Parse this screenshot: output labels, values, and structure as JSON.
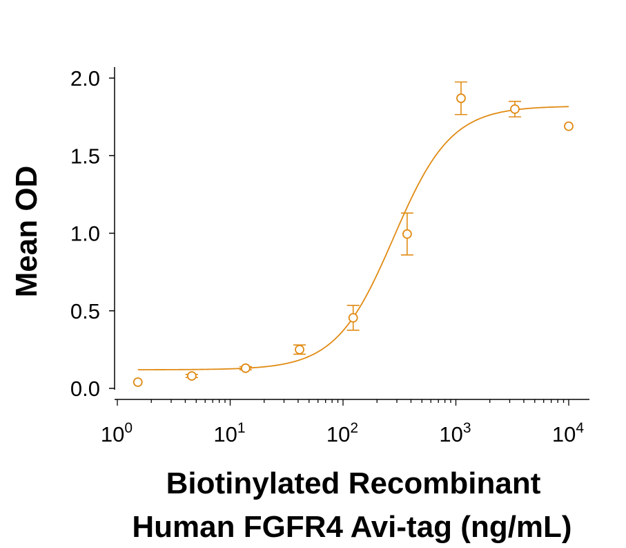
{
  "chart_data": {
    "type": "scatter",
    "title": "",
    "ylabel": "Mean OD",
    "xlabel_lines": [
      "Biotinylated Recombinant",
      "Human FGFR4 Avi-tag (ng/mL)"
    ],
    "x_scale": "log10",
    "xlim": [
      1,
      10000
    ],
    "ylim": [
      0,
      2.0
    ],
    "x_tick_labels": [
      {
        "base": "10",
        "exp": "0"
      },
      {
        "base": "10",
        "exp": "1"
      },
      {
        "base": "10",
        "exp": "2"
      },
      {
        "base": "10",
        "exp": "3"
      },
      {
        "base": "10",
        "exp": "4"
      }
    ],
    "y_tick_labels": [
      "0.0",
      "0.5",
      "1.0",
      "1.5",
      "2.0"
    ],
    "y_ticks": [
      0,
      0.5,
      1.0,
      1.5,
      2.0
    ],
    "grid": false,
    "legend": "none",
    "color": "#E08A12",
    "series": [
      {
        "points": [
          {
            "x": 1.52,
            "y": 0.04,
            "err": 0
          },
          {
            "x": 4.57,
            "y": 0.08,
            "err": 0.01
          },
          {
            "x": 13.7,
            "y": 0.13,
            "err": 0.01
          },
          {
            "x": 41.2,
            "y": 0.25,
            "err": 0.03
          },
          {
            "x": 123,
            "y": 0.455,
            "err": 0.08
          },
          {
            "x": 370,
            "y": 0.995,
            "err": 0.135
          },
          {
            "x": 1111,
            "y": 1.87,
            "err": 0.105
          },
          {
            "x": 3333,
            "y": 1.8,
            "err": 0.05
          },
          {
            "x": 10000,
            "y": 1.69,
            "err": 0
          }
        ]
      }
    ],
    "fit": {
      "model": "4PL",
      "bottom": 0.12,
      "top": 1.82,
      "ec50": 280,
      "hill": 1.7
    }
  }
}
